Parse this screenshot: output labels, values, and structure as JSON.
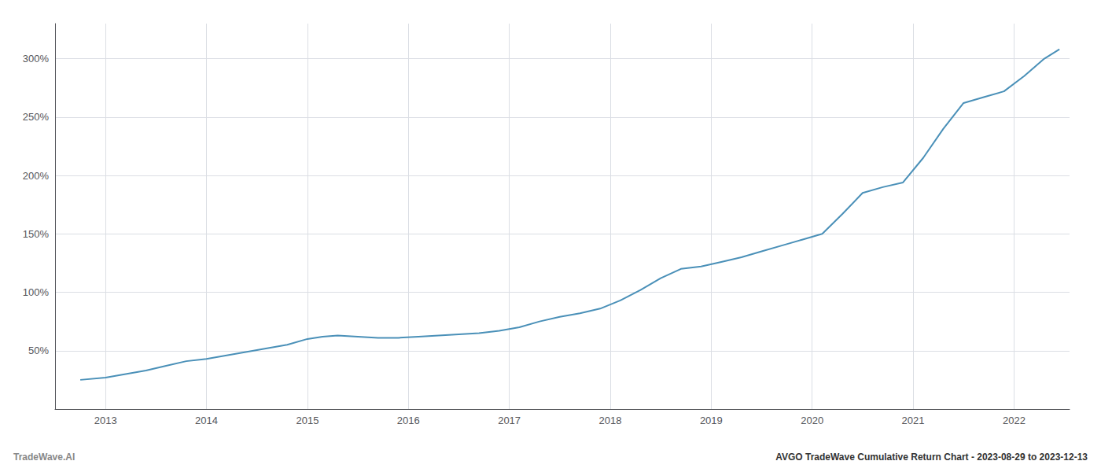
{
  "chart_data": {
    "type": "line",
    "title": "AVGO TradeWave Cumulative Return Chart - 2023-08-29 to 2023-12-13",
    "annotations": [
      "TradeWave.AI"
    ],
    "color": "#4a90b8",
    "grid": true,
    "x": [
      2012.75,
      2013.0,
      2013.2,
      2013.4,
      2013.6,
      2013.8,
      2014.0,
      2014.2,
      2014.4,
      2014.6,
      2014.8,
      2015.0,
      2015.15,
      2015.3,
      2015.5,
      2015.7,
      2015.9,
      2016.1,
      2016.3,
      2016.5,
      2016.7,
      2016.9,
      2017.1,
      2017.3,
      2017.5,
      2017.7,
      2017.9,
      2018.1,
      2018.3,
      2018.5,
      2018.7,
      2018.9,
      2019.1,
      2019.3,
      2019.5,
      2019.7,
      2019.9,
      2020.1,
      2020.3,
      2020.5,
      2020.7,
      2020.9,
      2021.1,
      2021.3,
      2021.5,
      2021.7,
      2021.9,
      2022.1,
      2022.3,
      2022.45
    ],
    "values": [
      25,
      27,
      30,
      33,
      37,
      41,
      43,
      46,
      49,
      52,
      55,
      60,
      62,
      63,
      62,
      61,
      61,
      62,
      63,
      64,
      65,
      67,
      70,
      75,
      79,
      82,
      86,
      93,
      102,
      112,
      120,
      122,
      126,
      130,
      135,
      140,
      145,
      150,
      167,
      185,
      190,
      194,
      215,
      240,
      262,
      267,
      272,
      285,
      300,
      308
    ],
    "xlim": [
      2012.5,
      2022.55
    ],
    "xticks": [
      2013,
      2014,
      2015,
      2016,
      2017,
      2018,
      2019,
      2020,
      2021,
      2022
    ],
    "ylim": [
      0,
      330
    ],
    "yticks": [
      {
        "value": 50,
        "label": "50%"
      },
      {
        "value": 100,
        "label": "100%"
      },
      {
        "value": 150,
        "label": "150%"
      },
      {
        "value": 200,
        "label": "200%"
      },
      {
        "value": 250,
        "label": "250%"
      },
      {
        "value": 300,
        "label": "300%"
      }
    ]
  }
}
